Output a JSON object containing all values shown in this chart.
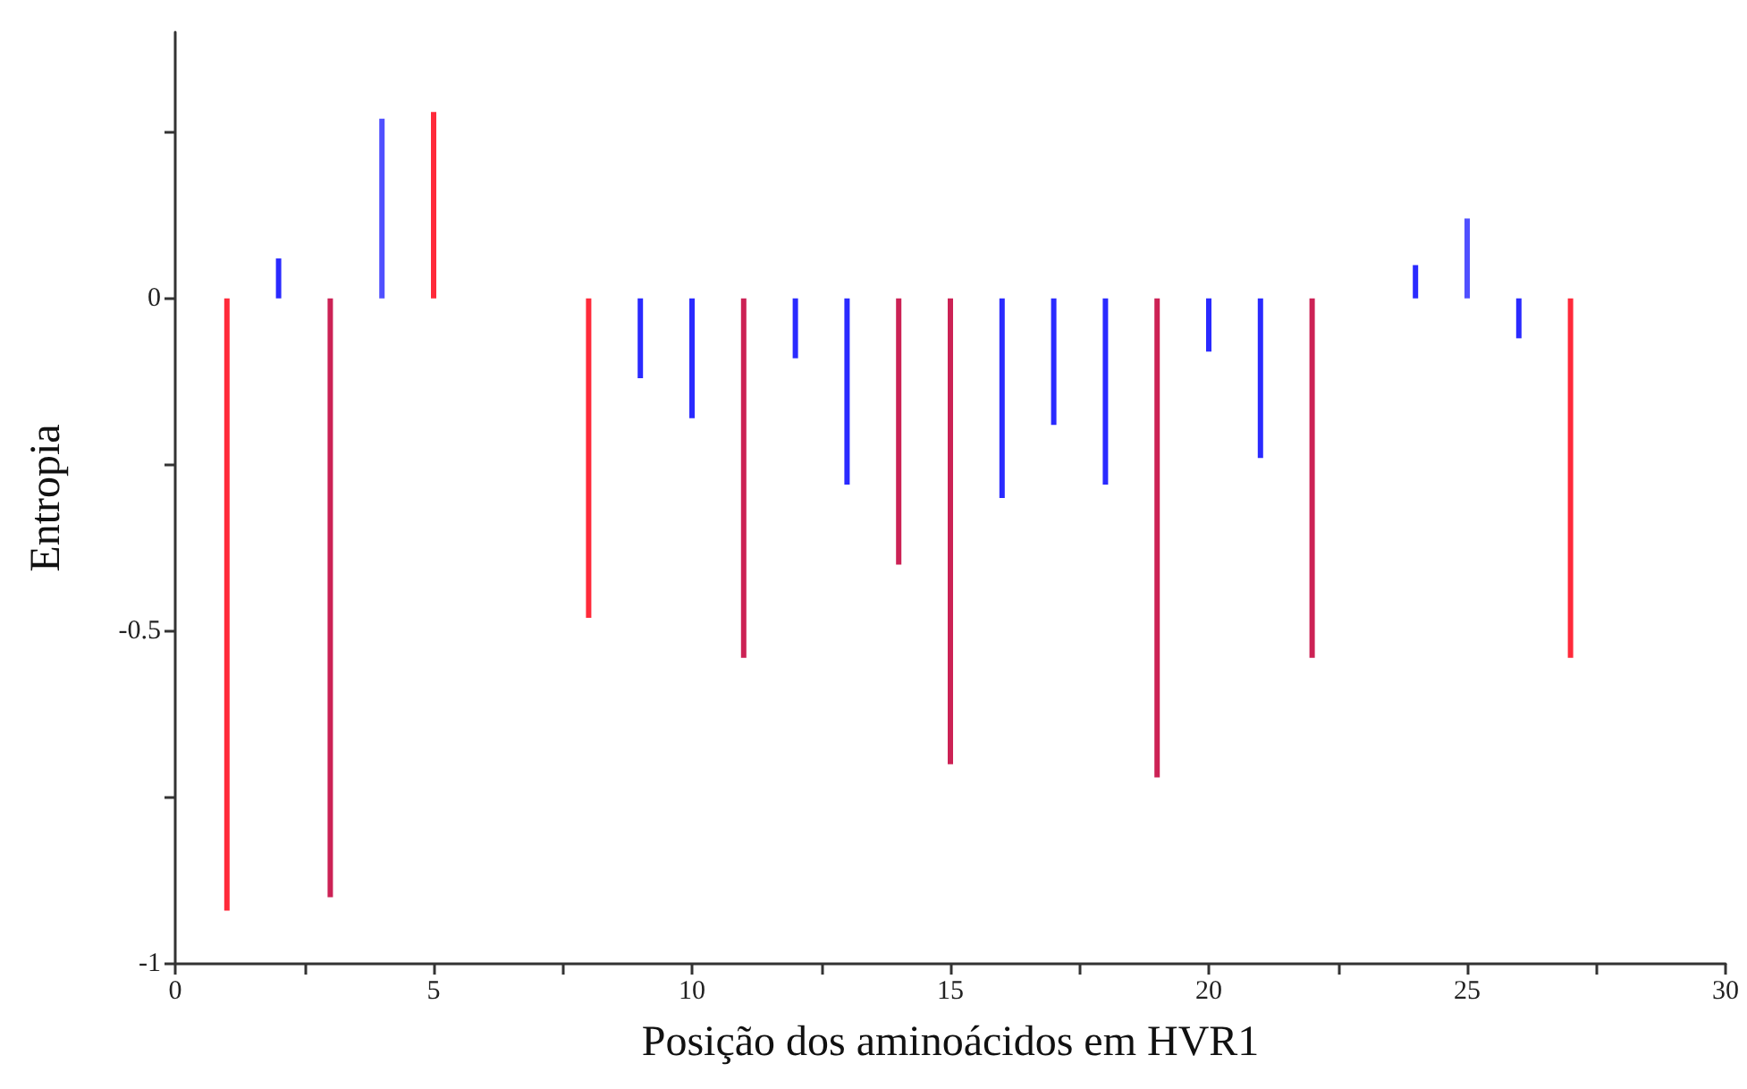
{
  "chart_data": {
    "type": "bar",
    "xlabel": "Posição dos aminoácidos em HVR1",
    "ylabel": "Entropia",
    "x": [
      1,
      2,
      3,
      4,
      5,
      6,
      7,
      8,
      9,
      10,
      11,
      12,
      13,
      14,
      15,
      16,
      17,
      18,
      19,
      20,
      21,
      22,
      23,
      24,
      25,
      26,
      27
    ],
    "values": [
      -0.92,
      0.06,
      -0.9,
      0.27,
      0.28,
      0,
      0,
      -0.48,
      -0.12,
      -0.18,
      -0.54,
      -0.09,
      -0.28,
      -0.4,
      -0.7,
      -0.3,
      -0.19,
      -0.28,
      -0.72,
      -0.08,
      -0.24,
      -0.54,
      0,
      0.05,
      0.12,
      -0.06,
      -0.54
    ],
    "colors": [
      "#ff2a3a",
      "#2a2aff",
      "#cc2255",
      "#5050ff",
      "#ff2a3a",
      "#2a2aff",
      "#2a2aff",
      "#ff2a3a",
      "#2a2aff",
      "#2a2aff",
      "#cc2255",
      "#2a2aff",
      "#2a2aff",
      "#cc2255",
      "#cc2255",
      "#2a2aff",
      "#2a2aff",
      "#2a2aff",
      "#cc2255",
      "#2a2aff",
      "#2a2aff",
      "#cc2255",
      "#2a2aff",
      "#2a2aff",
      "#5050ff",
      "#2a2aff",
      "#ff2a3a"
    ],
    "xlim": [
      0,
      30
    ],
    "xticks": [
      0,
      {
        "value": 2.5,
        "label": null
      },
      5,
      {
        "value": 7.5,
        "label": null
      },
      10,
      {
        "value": 12.5,
        "label": null
      },
      15,
      {
        "value": 17.5,
        "label": null
      },
      20,
      {
        "value": 22.5,
        "label": null
      },
      25,
      {
        "value": 27.5,
        "label": null
      },
      30
    ],
    "ylim": [
      -1,
      0.4
    ],
    "yticks": [
      -1,
      {
        "value": -0.75,
        "label": null
      },
      -0.5,
      {
        "value": -0.25,
        "label": null
      },
      0,
      {
        "value": 0.25,
        "label": null
      }
    ],
    "grid": false
  }
}
